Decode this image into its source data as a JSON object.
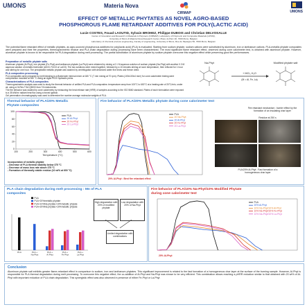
{
  "logos": {
    "umons": "UMONS",
    "materianova": "Materia Nova",
    "cirmap": "CIRMAP",
    "umons_right": "UMONS"
  },
  "header": {
    "title_line1": "EFFECT OF METALLIC PHYTATES AS NOVEL AGRO-BASED",
    "title_line2": "PHOSPHOROUS FLAME RETARDANT ADDITIVES FOR POLY(LACTIC ACID)",
    "authors": "Lucie COSTES, Fouad LAOUTID, Sylvain BROHEZ, Philippe DUBOIS and Christian DELVOSALLE",
    "affiliation1": "Center of Innovation and Research in Materials & Polymers (CIRMAP), Laboratory of Polymeric and Composite Materials (LPCM),",
    "affiliation2": "University of Mons & Materia Nova Research Center, Place du Parc 20, 7000 Mons, Belgium",
    "affiliation3": "Laboratory of chemical process engineering, Faculty of engineering, University of Mons, Rue de l'Epargne 56, 7000 Mons, Belgium"
  },
  "abstract": "The potential flame retardant effect of metallic phytates, as agro-sourced phosphorous additives for poly(lactic acid) (PLA) is evaluated. Starting from sodium phytate, sodium cations were substituted by aluminum, iron or lanthanum cations. PLA-metallic phytate composites were prepared and their fire properties, thermogravimetric residue and PLA chain degradation during processing have been characterized. The most significant flame retardant effect, observed during cone calorimeter test, is obtained with aluminum phytate. However, aluminum phytate is known to be responsible for PLA degradation during melt processing. The partial substitution of aluminum phytate by sodium phytate overcome this negative effect while preserving good fire performances.",
  "prep": {
    "heading": "Preparation of metallic phytate salts",
    "text": "Aluminum phytate (Al-Phyt), iron phytate (Fe-Phyt) and lanthanum phytate (La-Phyt) were obtained by mixing a 0.1 M aqueous solution of sodium phytate (Na-Phyt) with another 0.3 M aqueous solution of metallic trichloride (AlCl3, FeCl3 or LaCl3). The two solutions were mixed together, followed by a 10 minutes stirring at room temperature, then refluxed for 1 hour and stirring for one hour. The precipitated metallic phytate was washed by centrifugation with deionized water five times and freeze dried.",
    "heading2": "PLA composites processing",
    "text2": "PLA composites were prepared by melt blending in a Brabender internal mixer at 180 °C (7 min mixing at 70 rpm). Plates (100x100x4 mm³) for cone calorimeter testing were compression moulded at 180 °C using an Agila PE20 hydraulic press.",
    "heading3": "Characterizations of PLA composites",
    "text3": "Thermogravimetric analysis was used to study the thermal behavior of unfilled PLA and PLA composites: temperature ramp from 100°C to 600°C at a heating rate of 20°C/min, under air, using a Hi-Res TGA Q5000 from TA Instruments.",
    "text4": "The fire behavior was studied by cone calorimetry by measuring the heat release rate (HRR) of samples according to the ISO 5660 standard. Plates of each formulation were exposed to a 35 kW/m² radiant heat flux using a forced ignition.",
    "text5": "Gel permeation chromatography was used to determine the number average molecular weights of PLA."
  },
  "scheme": {
    "label_left": "Na-Phyt",
    "label_right": "Modified phytate salt",
    "reagent": "+ MCl₃ H₂O",
    "metals": "(M = Al, Fe, La)"
  },
  "thermal_panel": {
    "title_line1": "Thermal behavior of PLA/20% Metallic",
    "title_line2": "Phytate composites",
    "caption_heading": "Incorporation of metallic phytate",
    "caption_items": [
      "- Decrease of PLA thermal stability below 375 °C",
      "- Decrease of mass loss rate above 375 °C",
      "- Formation of thermally stable residue (10 wt% at 600 °C)"
    ]
  },
  "fire_panel1": {
    "title": "Fire behavior of PLA/20% Metallic phytate during cone calorimeter test",
    "caption": "20% Al-Phyt : Best fire retardant effect",
    "mechanism": "Fire retardant mechanism : barrier effect by the formation of an insulating char layer",
    "residue_label": "Residue at 250 s",
    "residue_caption_line1": "PLA/20% Al-Phyt : Fast formation of a",
    "residue_caption_line2": "homogeneous char layer"
  },
  "chain_panel": {
    "title_line1": "PLA chain degradation during melt processing : Mn of PLA",
    "title_line2": "composites",
    "box_high": "High degradation with 20% of modified phytate",
    "box_low": "Low degradation with 20% of Na-Phyt",
    "box_limited": "Limited degradation with combinations"
  },
  "fire_panel2": {
    "title_line1": "Fire behavior of PLA/10% Na-Phyt/10% Modified Phytate",
    "title_line2": "during cone calorimeter test",
    "caption": "20% Al-Phyt"
  },
  "conclusion": {
    "title": "Conclusion",
    "text": "Aluminum phytate salt exhibits greater flame-retardant effect in comparison to sodium, iron and lanthanum phytates. This significant improvement is related to the fast formation of a homogeneous char layer at the surface of the burning sample. However, Al-Phyt is responsible for PLA thermal degradation during melt processing. To overcome this negative effect, the co-addition of Al-Phyt and Na-Phyt was shown to be very efficient. This combination allows reaching a pHRR reduction similar to that obtained with 20 wt% of Al-Phyt with important reduction of PLA chain degradation. This synergistic effect was also observed in presence of either Fe-Phyt or La-Phyt."
  },
  "colors": {
    "accent": "#2b77c9",
    "title": "#1f3a93",
    "red": "#cc2929",
    "pla": "#111111",
    "al": "#2a5fd6",
    "fe": "#d63434",
    "la": "#d65cc5",
    "na": "#e68a2e"
  },
  "chart_data": [
    {
      "type": "line",
      "xlabel": "Temperature (°C)",
      "ylabel": "",
      "xlim": [
        100,
        600
      ],
      "ylim": [
        0,
        100
      ],
      "x_ticks": [
        100,
        200,
        300,
        400,
        500,
        600
      ],
      "y_ticks": [
        0,
        20,
        40,
        60,
        80,
        100
      ],
      "legend_position": "top-right",
      "series": [
        {
          "name": "PLA",
          "color": "#111111",
          "x": [
            100,
            300,
            330,
            350,
            365,
            375,
            390,
            400,
            600
          ],
          "y": [
            100,
            99,
            96,
            88,
            70,
            45,
            10,
            1,
            0
          ]
        },
        {
          "name": "20 Al-Phyt",
          "color": "#2a5fd6",
          "x": [
            100,
            250,
            300,
            320,
            340,
            355,
            370,
            400,
            450,
            600
          ],
          "y": [
            100,
            98,
            95,
            88,
            72,
            50,
            30,
            18,
            14,
            11
          ]
        },
        {
          "name": "20 Fe-Phyt",
          "color": "#d63434",
          "x": [
            100,
            250,
            300,
            320,
            340,
            355,
            370,
            400,
            450,
            600
          ],
          "y": [
            100,
            98,
            94,
            86,
            70,
            48,
            28,
            17,
            13,
            10
          ]
        },
        {
          "name": "20 La-Phyt",
          "color": "#d65cc5",
          "x": [
            100,
            250,
            300,
            320,
            340,
            355,
            370,
            400,
            450,
            600
          ],
          "y": [
            100,
            98,
            96,
            90,
            76,
            55,
            33,
            19,
            14,
            11
          ]
        }
      ]
    },
    {
      "type": "line",
      "xlabel": "",
      "ylabel": "",
      "xlim": [
        0,
        600
      ],
      "ylim": [
        0,
        500
      ],
      "legend_position": "top-right",
      "series": [
        {
          "name": "PLA",
          "color": "#111111",
          "x": [
            0,
            40,
            60,
            80,
            100,
            140,
            170,
            200,
            220,
            240,
            260
          ],
          "y": [
            0,
            5,
            80,
            300,
            420,
            470,
            480,
            470,
            400,
            150,
            0
          ]
        },
        {
          "name": "20 Na-Phyt",
          "color": "#e68a2e",
          "x": [
            0,
            40,
            60,
            80,
            110,
            150,
            200,
            230,
            250,
            270
          ],
          "y": [
            0,
            5,
            60,
            250,
            380,
            420,
            410,
            350,
            120,
            0
          ]
        },
        {
          "name": "20 Al-Phyt",
          "color": "#2a5fd6",
          "x": [
            0,
            40,
            60,
            80,
            100,
            140,
            200,
            260,
            320,
            380,
            420,
            450
          ],
          "y": [
            0,
            5,
            60,
            180,
            230,
            220,
            200,
            190,
            170,
            120,
            40,
            0
          ]
        },
        {
          "name": "20 Fe-Phyt",
          "color": "#d63434",
          "x": [
            0,
            40,
            60,
            80,
            110,
            150,
            200,
            240,
            270,
            300
          ],
          "y": [
            0,
            5,
            70,
            260,
            360,
            400,
            380,
            300,
            100,
            0
          ]
        },
        {
          "name": "20 La-Phyt",
          "color": "#d65cc5",
          "x": [
            0,
            40,
            60,
            80,
            110,
            150,
            200,
            240,
            270,
            300
          ],
          "y": [
            0,
            5,
            60,
            240,
            340,
            380,
            360,
            280,
            90,
            0
          ]
        }
      ]
    },
    {
      "type": "bar",
      "categories": [
        "PLA",
        "PLA + Na Phyt",
        "PLA + Al Phyt",
        "PLA + Fe Phyt",
        "PLA + La Phyt"
      ],
      "legend_position": "top-left",
      "series": [
        {
          "name": "PLA",
          "color": "#111111",
          "values": [
            100,
            null,
            null,
            null,
            null
          ]
        },
        {
          "name": "PLA+20%metallic phytate",
          "color": "#2a5fd6",
          "values": [
            null,
            80,
            12,
            15,
            17
          ]
        },
        {
          "name": "PLA+10%Na phytate+10%metallic phytate",
          "color": "#d63434",
          "values": [
            null,
            null,
            60,
            58,
            55
          ]
        },
        {
          "name": "PLA+20%Na phytate+10%metallic phytate",
          "color": "#d65cc5",
          "values": [
            null,
            null,
            65,
            62,
            60
          ]
        }
      ],
      "ylim": [
        0,
        110
      ]
    },
    {
      "type": "line",
      "xlabel": "",
      "ylabel": "",
      "xlim": [
        0,
        600
      ],
      "ylim": [
        0,
        500
      ],
      "legend_position": "top-right",
      "series": [
        {
          "name": "PLA",
          "color": "#111111",
          "x": [
            0,
            40,
            60,
            80,
            100,
            140,
            170,
            200,
            220,
            240,
            260
          ],
          "y": [
            0,
            5,
            80,
            300,
            420,
            470,
            480,
            470,
            400,
            150,
            0
          ]
        },
        {
          "name": "20% Al-Phyt",
          "color": "#2a5fd6",
          "x": [
            0,
            40,
            60,
            80,
            100,
            140,
            200,
            260,
            320,
            380,
            420,
            450
          ],
          "y": [
            0,
            5,
            60,
            180,
            230,
            220,
            200,
            190,
            170,
            120,
            40,
            0
          ]
        },
        {
          "name": "10% Na-Phyt/10% Al-Phyt",
          "color": "#e68a2e",
          "x": [
            0,
            40,
            60,
            80,
            110,
            160,
            220,
            280,
            340,
            390,
            430
          ],
          "y": [
            0,
            5,
            60,
            190,
            240,
            230,
            210,
            190,
            150,
            60,
            0
          ]
        },
        {
          "name": "10% Na-Phyt/10% Fe-Phyt",
          "color": "#d63434",
          "x": [
            0,
            40,
            60,
            80,
            110,
            160,
            220,
            280,
            330,
            370,
            400
          ],
          "y": [
            0,
            5,
            70,
            220,
            270,
            260,
            240,
            210,
            150,
            50,
            0
          ]
        },
        {
          "name": "10% Na-Phyt/10% La-Phyt",
          "color": "#d65cc5",
          "x": [
            0,
            40,
            60,
            80,
            110,
            160,
            220,
            280,
            320,
            360,
            390
          ],
          "y": [
            0,
            5,
            65,
            210,
            260,
            250,
            230,
            200,
            140,
            40,
            0
          ]
        }
      ]
    }
  ]
}
